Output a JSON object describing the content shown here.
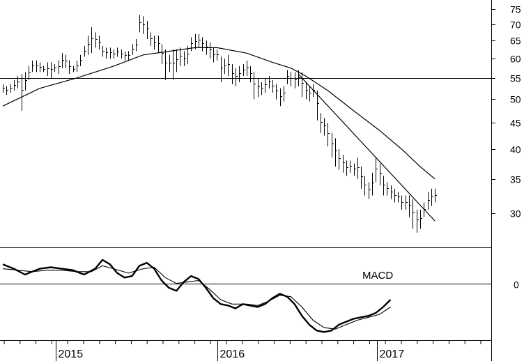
{
  "chart_data": [
    {
      "type": "ohlc",
      "panel": "price",
      "ylim": [
        26,
        78
      ],
      "y_scale": "log",
      "y_ticks": [
        30,
        35,
        40,
        45,
        50,
        55,
        60,
        65,
        70,
        75
      ],
      "x_ticks": [
        "2015",
        "2016",
        "2017"
      ],
      "horizontal_line": 55,
      "bars": [
        {
          "i": 0,
          "h": 53.5,
          "l": 51.5
        },
        {
          "i": 1,
          "h": 53.0,
          "l": 51.0
        },
        {
          "i": 2,
          "h": 53.5,
          "l": 51.5
        },
        {
          "i": 3,
          "h": 54.5,
          "l": 52.0
        },
        {
          "i": 4,
          "h": 55.5,
          "l": 52.5
        },
        {
          "i": 5,
          "h": 56.0,
          "l": 47.5
        },
        {
          "i": 6,
          "h": 56.5,
          "l": 52.0
        },
        {
          "i": 7,
          "h": 58.0,
          "l": 54.5
        },
        {
          "i": 8,
          "h": 59.5,
          "l": 56.5
        },
        {
          "i": 9,
          "h": 59.5,
          "l": 56.5
        },
        {
          "i": 10,
          "h": 59.0,
          "l": 56.5
        },
        {
          "i": 11,
          "h": 58.0,
          "l": 56.5
        },
        {
          "i": 12,
          "h": 59.0,
          "l": 55.5
        },
        {
          "i": 13,
          "h": 59.0,
          "l": 55.0
        },
        {
          "i": 14,
          "h": 58.5,
          "l": 56.5
        },
        {
          "i": 15,
          "h": 59.5,
          "l": 56.0
        },
        {
          "i": 16,
          "h": 61.5,
          "l": 57.5
        },
        {
          "i": 17,
          "h": 61.0,
          "l": 57.5
        },
        {
          "i": 18,
          "h": 59.5,
          "l": 56.0
        },
        {
          "i": 19,
          "h": 58.0,
          "l": 56.5
        },
        {
          "i": 20,
          "h": 59.5,
          "l": 56.5
        },
        {
          "i": 21,
          "h": 61.0,
          "l": 58.0
        },
        {
          "i": 22,
          "h": 63.5,
          "l": 60.5
        },
        {
          "i": 23,
          "h": 66.5,
          "l": 61.0
        },
        {
          "i": 24,
          "h": 69.0,
          "l": 61.5
        },
        {
          "i": 25,
          "h": 67.5,
          "l": 63.0
        },
        {
          "i": 26,
          "h": 66.5,
          "l": 62.5
        },
        {
          "i": 27,
          "h": 63.5,
          "l": 60.5
        },
        {
          "i": 28,
          "h": 63.0,
          "l": 60.0
        },
        {
          "i": 29,
          "h": 63.0,
          "l": 60.0
        },
        {
          "i": 30,
          "h": 62.5,
          "l": 60.0
        },
        {
          "i": 31,
          "h": 63.0,
          "l": 60.5
        },
        {
          "i": 32,
          "h": 62.5,
          "l": 60.0
        },
        {
          "i": 33,
          "h": 62.0,
          "l": 59.5
        },
        {
          "i": 34,
          "h": 62.0,
          "l": 59.5
        },
        {
          "i": 35,
          "h": 64.0,
          "l": 61.0
        },
        {
          "i": 36,
          "h": 65.5,
          "l": 62.0
        },
        {
          "i": 37,
          "h": 73.0,
          "l": 67.5
        },
        {
          "i": 38,
          "h": 72.5,
          "l": 67.0
        },
        {
          "i": 39,
          "h": 71.0,
          "l": 65.5
        },
        {
          "i": 40,
          "h": 67.5,
          "l": 63.5
        },
        {
          "i": 41,
          "h": 66.5,
          "l": 62.5
        },
        {
          "i": 42,
          "h": 66.5,
          "l": 61.5
        },
        {
          "i": 43,
          "h": 64.0,
          "l": 58.5
        },
        {
          "i": 44,
          "h": 62.5,
          "l": 54.5
        },
        {
          "i": 45,
          "h": 61.0,
          "l": 56.5
        },
        {
          "i": 46,
          "h": 62.5,
          "l": 54.5
        },
        {
          "i": 47,
          "h": 62.5,
          "l": 56.5
        },
        {
          "i": 48,
          "h": 63.0,
          "l": 58.0
        },
        {
          "i": 49,
          "h": 62.0,
          "l": 58.0
        },
        {
          "i": 50,
          "h": 63.5,
          "l": 58.5
        },
        {
          "i": 51,
          "h": 66.0,
          "l": 62.0
        },
        {
          "i": 52,
          "h": 67.0,
          "l": 62.5
        },
        {
          "i": 53,
          "h": 67.0,
          "l": 63.0
        },
        {
          "i": 54,
          "h": 66.0,
          "l": 62.0
        },
        {
          "i": 55,
          "h": 65.0,
          "l": 61.0
        },
        {
          "i": 56,
          "h": 64.5,
          "l": 60.0
        },
        {
          "i": 57,
          "h": 63.0,
          "l": 59.0
        },
        {
          "i": 58,
          "h": 62.5,
          "l": 59.5
        },
        {
          "i": 59,
          "h": 60.5,
          "l": 54.0
        },
        {
          "i": 60,
          "h": 60.0,
          "l": 56.0
        },
        {
          "i": 61,
          "h": 61.0,
          "l": 55.5
        },
        {
          "i": 62,
          "h": 58.5,
          "l": 53.5
        },
        {
          "i": 63,
          "h": 57.5,
          "l": 53.0
        },
        {
          "i": 64,
          "h": 58.0,
          "l": 54.0
        },
        {
          "i": 65,
          "h": 58.5,
          "l": 55.5
        },
        {
          "i": 66,
          "h": 59.5,
          "l": 55.5
        },
        {
          "i": 67,
          "h": 58.0,
          "l": 54.0
        },
        {
          "i": 68,
          "h": 56.5,
          "l": 50.0
        },
        {
          "i": 69,
          "h": 55.0,
          "l": 50.5
        },
        {
          "i": 70,
          "h": 54.0,
          "l": 51.0
        },
        {
          "i": 71,
          "h": 55.0,
          "l": 51.5
        },
        {
          "i": 72,
          "h": 55.5,
          "l": 52.5
        },
        {
          "i": 73,
          "h": 54.5,
          "l": 51.5
        },
        {
          "i": 74,
          "h": 53.5,
          "l": 50.0
        },
        {
          "i": 75,
          "h": 52.5,
          "l": 48.5
        },
        {
          "i": 76,
          "h": 53.0,
          "l": 49.5
        },
        {
          "i": 77,
          "h": 57.0,
          "l": 53.5
        },
        {
          "i": 78,
          "h": 56.5,
          "l": 53.0
        },
        {
          "i": 79,
          "h": 56.5,
          "l": 52.5
        },
        {
          "i": 80,
          "h": 57.0,
          "l": 53.0
        },
        {
          "i": 81,
          "h": 56.5,
          "l": 50.5
        },
        {
          "i": 82,
          "h": 54.0,
          "l": 50.0
        },
        {
          "i": 83,
          "h": 53.0,
          "l": 49.5
        },
        {
          "i": 84,
          "h": 53.5,
          "l": 50.5
        },
        {
          "i": 85,
          "h": 52.0,
          "l": 45.5
        },
        {
          "i": 86,
          "h": 47.0,
          "l": 43.0
        },
        {
          "i": 87,
          "h": 46.0,
          "l": 42.5
        },
        {
          "i": 88,
          "h": 45.0,
          "l": 40.5
        },
        {
          "i": 89,
          "h": 43.0,
          "l": 38.5
        },
        {
          "i": 90,
          "h": 42.0,
          "l": 37.0
        },
        {
          "i": 91,
          "h": 40.0,
          "l": 36.5
        },
        {
          "i": 92,
          "h": 39.0,
          "l": 36.0
        },
        {
          "i": 93,
          "h": 38.0,
          "l": 35.5
        },
        {
          "i": 94,
          "h": 38.0,
          "l": 36.0
        },
        {
          "i": 95,
          "h": 37.5,
          "l": 35.5
        },
        {
          "i": 96,
          "h": 38.5,
          "l": 35.0
        },
        {
          "i": 97,
          "h": 37.0,
          "l": 33.5
        },
        {
          "i": 98,
          "h": 35.5,
          "l": 32.5
        },
        {
          "i": 99,
          "h": 34.5,
          "l": 32.0
        },
        {
          "i": 100,
          "h": 36.0,
          "l": 32.5
        },
        {
          "i": 101,
          "h": 38.5,
          "l": 34.5
        },
        {
          "i": 102,
          "h": 37.5,
          "l": 34.0
        },
        {
          "i": 103,
          "h": 35.5,
          "l": 32.5
        },
        {
          "i": 104,
          "h": 34.5,
          "l": 32.5
        },
        {
          "i": 105,
          "h": 34.0,
          "l": 32.0
        },
        {
          "i": 106,
          "h": 33.5,
          "l": 31.5
        },
        {
          "i": 107,
          "h": 33.0,
          "l": 31.5
        },
        {
          "i": 108,
          "h": 32.5,
          "l": 30.5
        },
        {
          "i": 109,
          "h": 32.5,
          "l": 30.5
        },
        {
          "i": 110,
          "h": 32.5,
          "l": 29.5
        },
        {
          "i": 111,
          "h": 32.0,
          "l": 28.0
        },
        {
          "i": 112,
          "h": 30.5,
          "l": 27.5
        },
        {
          "i": 113,
          "h": 30.5,
          "l": 28.0
        },
        {
          "i": 114,
          "h": 31.5,
          "l": 29.5
        },
        {
          "i": 115,
          "h": 33.0,
          "l": 30.5
        },
        {
          "i": 116,
          "h": 33.5,
          "l": 31.0
        },
        {
          "i": 117,
          "h": 33.5,
          "l": 31.5
        }
      ],
      "series": [
        {
          "kind": "moving-average",
          "points": [
            [
              0,
              48.5
            ],
            [
              10,
              52.5
            ],
            [
              20,
              55.0
            ],
            [
              30,
              58.0
            ],
            [
              38,
              61.0
            ],
            [
              45,
              62.0
            ],
            [
              52,
              63.0
            ],
            [
              58,
              63.0
            ],
            [
              66,
              61.5
            ],
            [
              73,
              59.0
            ],
            [
              78,
              57.5
            ],
            [
              82,
              55.5
            ],
            [
              88,
              52.0
            ],
            [
              95,
              47.5
            ],
            [
              102,
              43.5
            ],
            [
              108,
              40.0
            ],
            [
              113,
              37.0
            ],
            [
              117,
              35.0
            ]
          ]
        },
        {
          "kind": "trendline",
          "points": [
            [
              80,
              56.0
            ],
            [
              117,
              29.0
            ]
          ]
        }
      ]
    },
    {
      "type": "line",
      "panel": "indicator",
      "label": "MACD",
      "ylim": [
        -3.8,
        2.4
      ],
      "zero_label": "0",
      "series": [
        {
          "kind": "macd",
          "points": [
            [
              0,
              1.3
            ],
            [
              3,
              1.0
            ],
            [
              6,
              0.6
            ],
            [
              8,
              0.8
            ],
            [
              10,
              1.0
            ],
            [
              13,
              1.1
            ],
            [
              16,
              1.0
            ],
            [
              19,
              0.9
            ],
            [
              22,
              0.6
            ],
            [
              25,
              1.0
            ],
            [
              27,
              1.6
            ],
            [
              29,
              1.3
            ],
            [
              31,
              0.7
            ],
            [
              33,
              0.4
            ],
            [
              35,
              0.5
            ],
            [
              37,
              1.2
            ],
            [
              39,
              1.4
            ],
            [
              41,
              1.0
            ],
            [
              43,
              0.2
            ],
            [
              45,
              -0.3
            ],
            [
              47,
              -0.5
            ],
            [
              49,
              0.1
            ],
            [
              51,
              0.5
            ],
            [
              53,
              0.3
            ],
            [
              55,
              -0.3
            ],
            [
              57,
              -1.0
            ],
            [
              59,
              -1.4
            ],
            [
              61,
              -1.5
            ],
            [
              63,
              -1.7
            ],
            [
              65,
              -1.4
            ],
            [
              67,
              -1.5
            ],
            [
              69,
              -1.6
            ],
            [
              71,
              -1.4
            ],
            [
              73,
              -1.0
            ],
            [
              75,
              -0.7
            ],
            [
              77,
              -0.9
            ],
            [
              79,
              -1.4
            ],
            [
              81,
              -2.2
            ],
            [
              83,
              -2.8
            ],
            [
              85,
              -3.2
            ],
            [
              87,
              -3.3
            ],
            [
              89,
              -3.2
            ],
            [
              91,
              -2.8
            ],
            [
              93,
              -2.6
            ],
            [
              95,
              -2.4
            ],
            [
              97,
              -2.3
            ],
            [
              99,
              -2.2
            ],
            [
              101,
              -2.0
            ],
            [
              103,
              -1.6
            ],
            [
              105,
              -1.1
            ]
          ]
        },
        {
          "kind": "signal",
          "points": [
            [
              0,
              1.0
            ],
            [
              4,
              0.9
            ],
            [
              8,
              0.8
            ],
            [
              12,
              0.9
            ],
            [
              16,
              0.9
            ],
            [
              20,
              0.8
            ],
            [
              24,
              0.8
            ],
            [
              27,
              1.2
            ],
            [
              30,
              1.0
            ],
            [
              34,
              0.7
            ],
            [
              38,
              1.0
            ],
            [
              41,
              1.1
            ],
            [
              44,
              0.4
            ],
            [
              47,
              0.0
            ],
            [
              50,
              0.1
            ],
            [
              53,
              0.2
            ],
            [
              56,
              -0.4
            ],
            [
              59,
              -1.1
            ],
            [
              62,
              -1.4
            ],
            [
              66,
              -1.4
            ],
            [
              69,
              -1.5
            ],
            [
              72,
              -1.2
            ],
            [
              75,
              -0.8
            ],
            [
              78,
              -0.9
            ],
            [
              81,
              -1.6
            ],
            [
              84,
              -2.5
            ],
            [
              87,
              -3.0
            ],
            [
              90,
              -3.1
            ],
            [
              93,
              -2.8
            ],
            [
              96,
              -2.5
            ],
            [
              99,
              -2.3
            ],
            [
              102,
              -2.1
            ],
            [
              105,
              -1.6
            ]
          ]
        }
      ]
    }
  ],
  "colors": {
    "background": "#ffffff",
    "ink": "#000000"
  }
}
